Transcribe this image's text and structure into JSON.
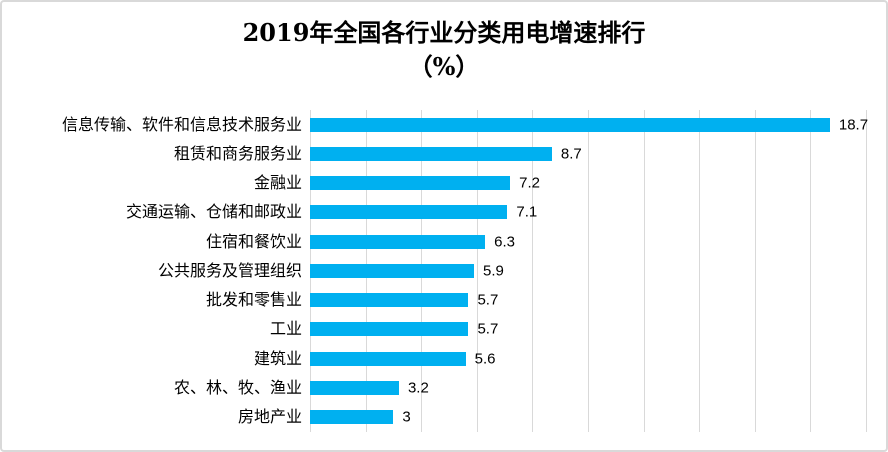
{
  "title": {
    "line1": "2019年全国各行业分类用电增速排行",
    "line2": "（%）"
  },
  "colors": {
    "bar": "#00B0F0",
    "gridline": "#d9d9d9",
    "border": "#d9d9d9",
    "text": "#000000"
  },
  "chart_data": {
    "type": "bar",
    "orientation": "horizontal",
    "title": "2019年全国各行业分类用电增速排行（%）",
    "categories": [
      "信息传输、软件和信息技术服务业",
      "租赁和商务服务业",
      "金融业",
      "交通运输、仓储和邮政业",
      "住宿和餐饮业",
      "公共服务及管理组织",
      "批发和零售业",
      "工业",
      "建筑业",
      "农、林、牧、渔业",
      "房地产业"
    ],
    "values": [
      18.7,
      8.7,
      7.2,
      7.1,
      6.3,
      5.9,
      5.7,
      5.7,
      5.6,
      3.2,
      3
    ],
    "data_labels": [
      "18.7",
      "8.7",
      "7.2",
      "7.1",
      "6.3",
      "5.9",
      "5.7",
      "5.7",
      "5.6",
      "3.2",
      "3"
    ],
    "xlabel": "",
    "ylabel": "",
    "xlim": [
      0,
      20
    ],
    "gridline_interval": 2,
    "grid": true,
    "legend": "none",
    "axis_tick_labels_visible": false
  }
}
